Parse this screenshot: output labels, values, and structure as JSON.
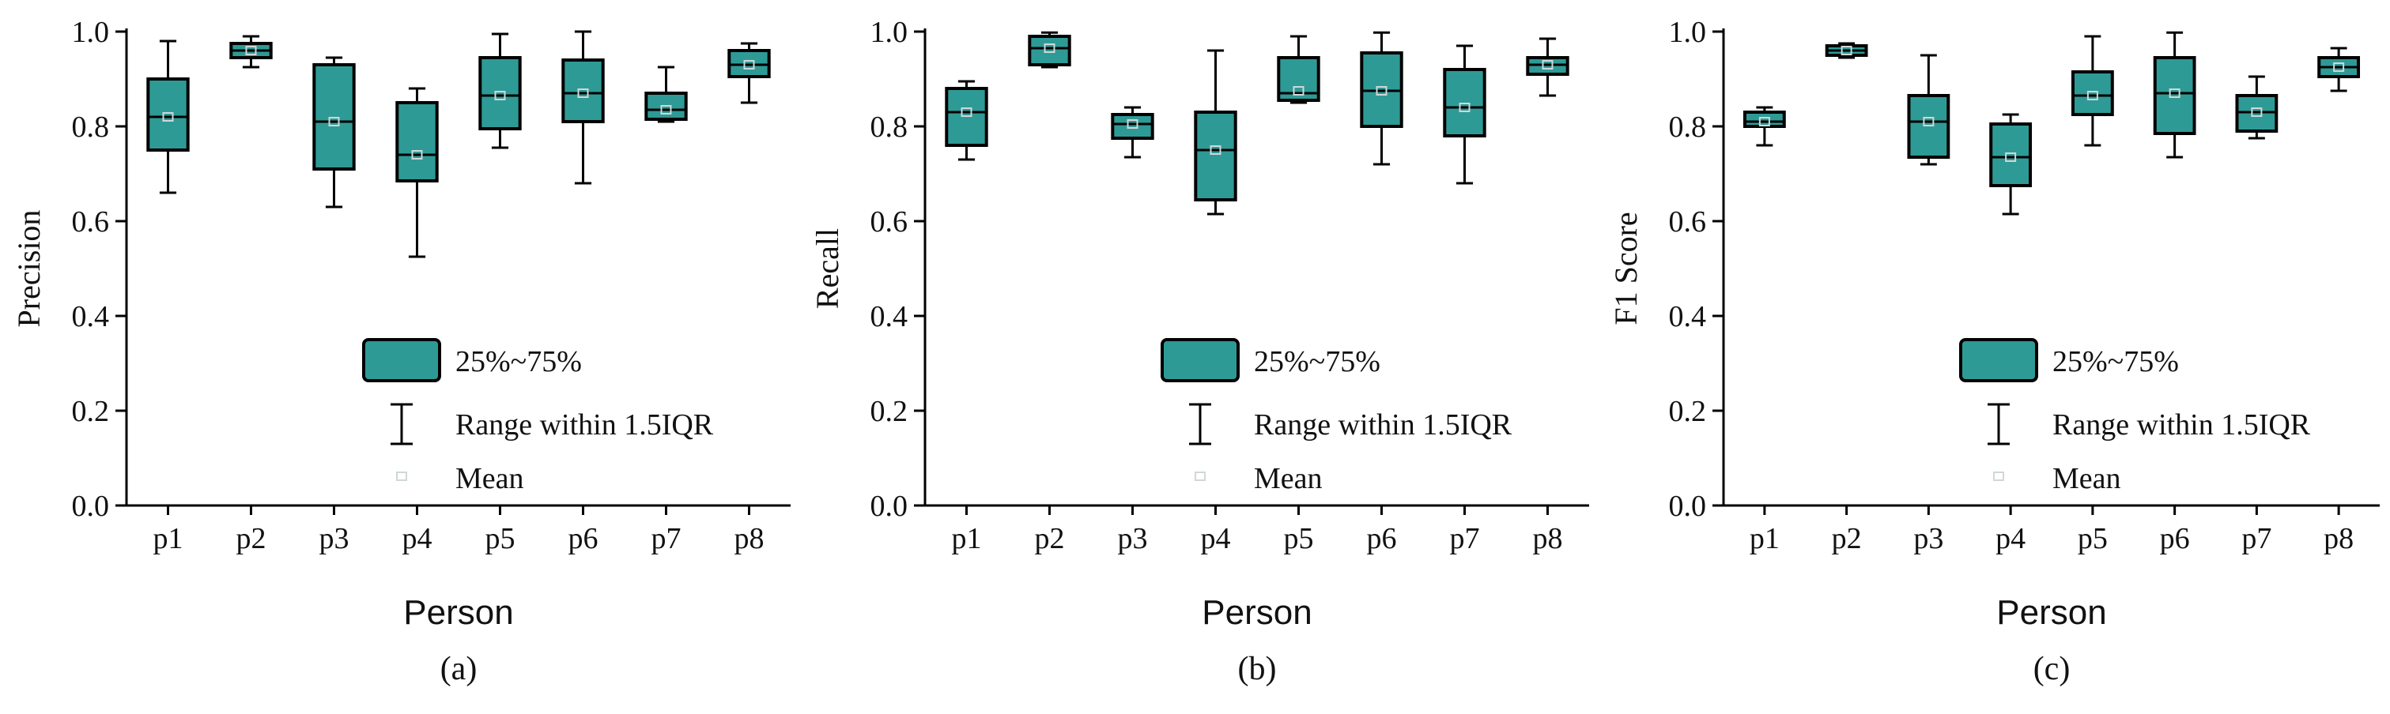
{
  "colors": {
    "box_fill": "#2e9a96",
    "stroke": "#000000",
    "mean_marker": "#cfd8d8"
  },
  "legend": {
    "box_label": "25%~75%",
    "range_label": "Range within 1.5IQR",
    "mean_label": "Mean"
  },
  "chart_data": [
    {
      "type": "box",
      "panel_label": "(a)",
      "xlabel": "Person",
      "ylabel": "Precision",
      "ylim": [
        0,
        1.0
      ],
      "yticks": [
        "0.0",
        "0.2",
        "0.4",
        "0.6",
        "0.8",
        "1.0"
      ],
      "categories": [
        "p1",
        "p2",
        "p3",
        "p4",
        "p5",
        "p6",
        "p7",
        "p8"
      ],
      "boxes": [
        {
          "min": 0.66,
          "q1": 0.75,
          "median": 0.82,
          "mean": 0.82,
          "q3": 0.9,
          "max": 0.98
        },
        {
          "min": 0.925,
          "q1": 0.945,
          "median": 0.96,
          "mean": 0.96,
          "q3": 0.975,
          "max": 0.99
        },
        {
          "min": 0.63,
          "q1": 0.71,
          "median": 0.81,
          "mean": 0.81,
          "q3": 0.93,
          "max": 0.945
        },
        {
          "min": 0.525,
          "q1": 0.685,
          "median": 0.74,
          "mean": 0.74,
          "q3": 0.85,
          "max": 0.88
        },
        {
          "min": 0.755,
          "q1": 0.795,
          "median": 0.865,
          "mean": 0.865,
          "q3": 0.945,
          "max": 0.995
        },
        {
          "min": 0.68,
          "q1": 0.81,
          "median": 0.87,
          "mean": 0.87,
          "q3": 0.94,
          "max": 1.0
        },
        {
          "min": 0.81,
          "q1": 0.815,
          "median": 0.835,
          "mean": 0.835,
          "q3": 0.87,
          "max": 0.925
        },
        {
          "min": 0.85,
          "q1": 0.905,
          "median": 0.93,
          "mean": 0.93,
          "q3": 0.96,
          "max": 0.975
        }
      ]
    },
    {
      "type": "box",
      "panel_label": "(b)",
      "xlabel": "Person",
      "ylabel": "Recall",
      "ylim": [
        0,
        1.0
      ],
      "yticks": [
        "0.0",
        "0.2",
        "0.4",
        "0.6",
        "0.8",
        "1.0"
      ],
      "categories": [
        "p1",
        "p2",
        "p3",
        "p4",
        "p5",
        "p6",
        "p7",
        "p8"
      ],
      "boxes": [
        {
          "min": 0.73,
          "q1": 0.76,
          "median": 0.83,
          "mean": 0.83,
          "q3": 0.88,
          "max": 0.895
        },
        {
          "min": 0.925,
          "q1": 0.93,
          "median": 0.965,
          "mean": 0.965,
          "q3": 0.99,
          "max": 0.998
        },
        {
          "min": 0.735,
          "q1": 0.775,
          "median": 0.805,
          "mean": 0.805,
          "q3": 0.825,
          "max": 0.84
        },
        {
          "min": 0.615,
          "q1": 0.645,
          "median": 0.75,
          "mean": 0.75,
          "q3": 0.83,
          "max": 0.96
        },
        {
          "min": 0.85,
          "q1": 0.855,
          "median": 0.87,
          "mean": 0.875,
          "q3": 0.945,
          "max": 0.99
        },
        {
          "min": 0.72,
          "q1": 0.8,
          "median": 0.875,
          "mean": 0.875,
          "q3": 0.955,
          "max": 0.998
        },
        {
          "min": 0.68,
          "q1": 0.78,
          "median": 0.84,
          "mean": 0.84,
          "q3": 0.92,
          "max": 0.97
        },
        {
          "min": 0.865,
          "q1": 0.91,
          "median": 0.93,
          "mean": 0.93,
          "q3": 0.945,
          "max": 0.985
        }
      ]
    },
    {
      "type": "box",
      "panel_label": "(c)",
      "xlabel": "Person",
      "ylabel": "F1 Score",
      "ylim": [
        0,
        1.0
      ],
      "yticks": [
        "0.0",
        "0.2",
        "0.4",
        "0.6",
        "0.8",
        "1.0"
      ],
      "categories": [
        "p1",
        "p2",
        "p3",
        "p4",
        "p5",
        "p6",
        "p7",
        "p8"
      ],
      "boxes": [
        {
          "min": 0.76,
          "q1": 0.8,
          "median": 0.81,
          "mean": 0.81,
          "q3": 0.83,
          "max": 0.84
        },
        {
          "min": 0.945,
          "q1": 0.95,
          "median": 0.96,
          "mean": 0.96,
          "q3": 0.97,
          "max": 0.975
        },
        {
          "min": 0.72,
          "q1": 0.735,
          "median": 0.81,
          "mean": 0.81,
          "q3": 0.865,
          "max": 0.95
        },
        {
          "min": 0.615,
          "q1": 0.675,
          "median": 0.735,
          "mean": 0.735,
          "q3": 0.805,
          "max": 0.825
        },
        {
          "min": 0.76,
          "q1": 0.825,
          "median": 0.865,
          "mean": 0.865,
          "q3": 0.915,
          "max": 0.99
        },
        {
          "min": 0.735,
          "q1": 0.785,
          "median": 0.87,
          "mean": 0.87,
          "q3": 0.945,
          "max": 0.998
        },
        {
          "min": 0.775,
          "q1": 0.79,
          "median": 0.83,
          "mean": 0.83,
          "q3": 0.865,
          "max": 0.905
        },
        {
          "min": 0.875,
          "q1": 0.905,
          "median": 0.925,
          "mean": 0.925,
          "q3": 0.945,
          "max": 0.965
        }
      ]
    }
  ]
}
